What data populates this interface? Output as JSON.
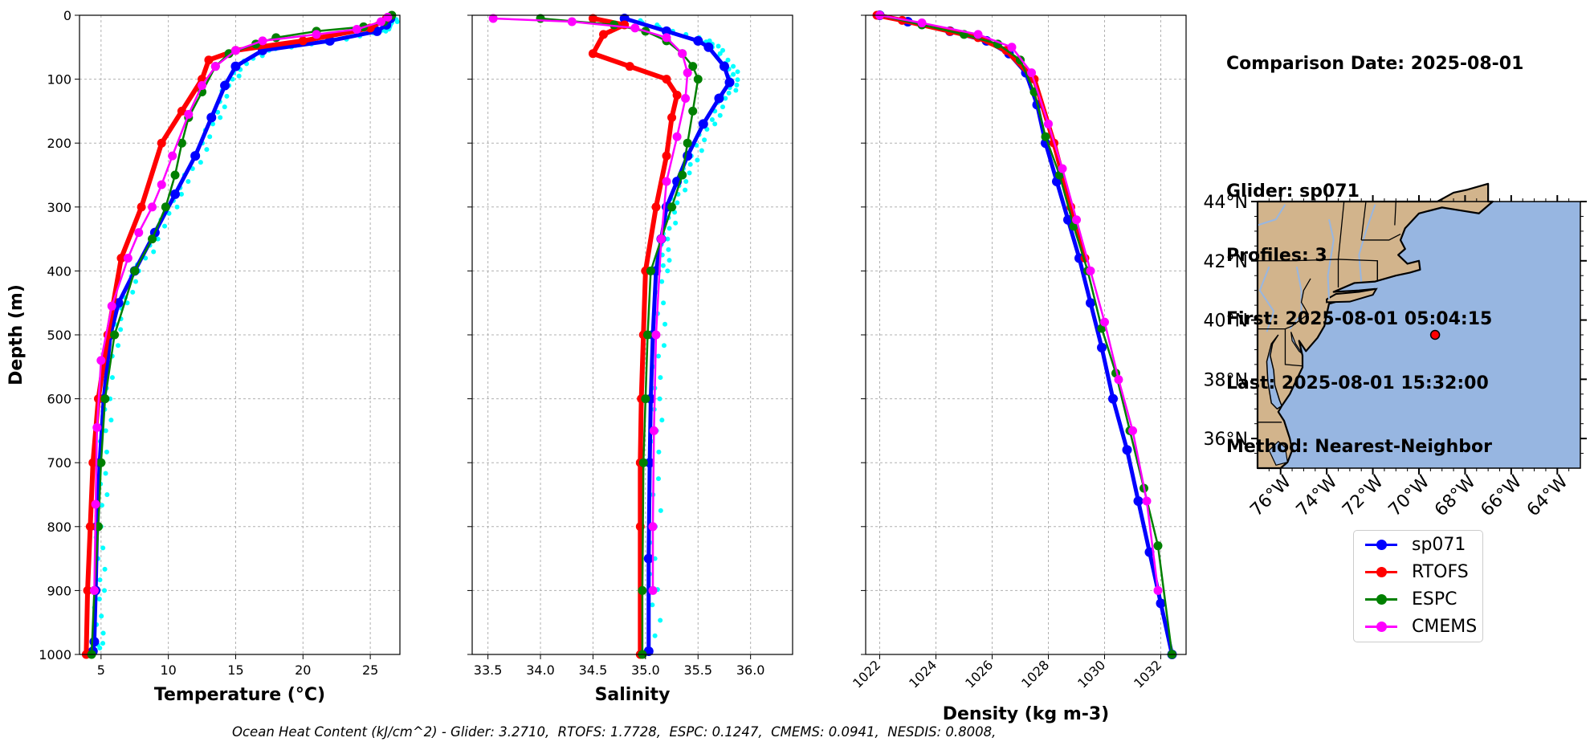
{
  "info": {
    "lines": [
      "Comparison Date: 2025-08-01",
      "",
      "Glider: sp071",
      "Profiles: 3",
      "First: 2025-08-01 05:04:15",
      "Last: 2025-08-01 15:32:00",
      "Method: Nearest-Neighbor"
    ]
  },
  "footer": "Ocean Heat Content (kJ/cm^2) - Glider: 3.2710,  RTOFS: 1.7728,  ESPC: 0.1247,  CMEMS: 0.0941,  NESDIS: 0.8008,",
  "colors": {
    "sp071": "#0000ff",
    "sp071_scatter": "#00ffff",
    "RTOFS": "#ff0000",
    "ESPC": "#008000",
    "CMEMS": "#ff00ff",
    "land": "#d2b48c",
    "ocean": "#97b6e1"
  },
  "legend": [
    {
      "name": "sp071",
      "color": "#0000ff"
    },
    {
      "name": "RTOFS",
      "color": "#ff0000"
    },
    {
      "name": "ESPC",
      "color": "#008000"
    },
    {
      "name": "CMEMS",
      "color": "#ff00ff"
    }
  ],
  "chart_data": [
    {
      "type": "line",
      "xlabel": "Temperature (°C)",
      "ylabel": "Depth (m)",
      "xlim": [
        3.4,
        27.2
      ],
      "ylim": [
        1000,
        0
      ],
      "xticks": [
        5,
        10,
        15,
        20,
        25
      ],
      "yticks": [
        0,
        100,
        200,
        300,
        400,
        500,
        600,
        700,
        800,
        900,
        1000
      ],
      "grid": true,
      "series": [
        {
          "name": "sp071",
          "x": [
            26.5,
            26.2,
            25.5,
            22.0,
            17.0,
            15.0,
            14.2,
            13.2,
            12.0,
            10.5,
            9.0,
            7.5,
            6.3,
            5.7,
            5.2,
            4.9,
            4.7,
            4.6,
            4.5,
            4.4
          ],
          "y": [
            5,
            15,
            25,
            40,
            55,
            80,
            110,
            160,
            220,
            280,
            340,
            400,
            450,
            500,
            600,
            700,
            800,
            900,
            980,
            995
          ]
        },
        {
          "name": "RTOFS",
          "x": [
            26.2,
            25.0,
            20.0,
            15.0,
            13.0,
            12.5,
            11.0,
            9.5,
            8.0,
            6.5,
            5.5,
            4.8,
            4.4,
            4.2,
            4.0,
            3.9
          ],
          "y": [
            5,
            20,
            40,
            55,
            70,
            100,
            150,
            200,
            300,
            380,
            500,
            600,
            700,
            800,
            900,
            1000
          ]
        },
        {
          "name": "ESPC",
          "x": [
            26.6,
            26.0,
            24.5,
            21.0,
            18.0,
            16.5,
            14.5,
            13.5,
            12.5,
            11.5,
            11.0,
            10.5,
            9.8,
            8.8,
            7.5,
            6.0,
            5.3,
            5.0,
            4.8,
            4.5,
            4.3
          ],
          "y": [
            0,
            10,
            18,
            25,
            35,
            45,
            60,
            80,
            120,
            160,
            200,
            250,
            300,
            350,
            400,
            500,
            600,
            700,
            800,
            900,
            1000
          ]
        },
        {
          "name": "CMEMS",
          "x": [
            26.3,
            25.8,
            24.0,
            21.0,
            17.0,
            15.0,
            13.5,
            12.5,
            11.5,
            10.3,
            9.5,
            8.8,
            7.8,
            7.0,
            5.8,
            5.0,
            4.7,
            4.6,
            4.5
          ],
          "y": [
            3,
            10,
            22,
            30,
            40,
            55,
            80,
            110,
            155,
            220,
            265,
            300,
            340,
            380,
            455,
            540,
            645,
            765,
            900
          ]
        }
      ]
    },
    {
      "type": "line",
      "xlabel": "Salinity",
      "ylabel": "",
      "xlim": [
        33.35,
        36.4
      ],
      "ylim": [
        1000,
        0
      ],
      "xticks": [
        33.5,
        34.0,
        34.5,
        35.0,
        35.5,
        36.0
      ],
      "yticks": [
        0,
        100,
        200,
        300,
        400,
        500,
        600,
        700,
        800,
        900,
        1000
      ],
      "grid": true,
      "series": [
        {
          "name": "sp071",
          "x": [
            34.8,
            35.2,
            35.5,
            35.6,
            35.75,
            35.8,
            35.7,
            35.55,
            35.4,
            35.3,
            35.2,
            35.15,
            35.1,
            35.07,
            35.05,
            35.04,
            35.03,
            35.03
          ],
          "y": [
            5,
            25,
            40,
            50,
            80,
            105,
            130,
            170,
            220,
            260,
            300,
            350,
            400,
            500,
            600,
            700,
            850,
            995
          ]
        },
        {
          "name": "RTOFS",
          "x": [
            34.5,
            34.8,
            34.6,
            34.5,
            34.85,
            35.2,
            35.3,
            35.25,
            35.2,
            35.1,
            35.0,
            34.98,
            34.96,
            34.95,
            34.95,
            34.95
          ],
          "y": [
            5,
            15,
            30,
            60,
            80,
            100,
            125,
            160,
            220,
            300,
            400,
            500,
            600,
            700,
            800,
            1000
          ]
        },
        {
          "name": "ESPC",
          "x": [
            34.0,
            34.7,
            35.0,
            35.2,
            35.35,
            35.45,
            35.5,
            35.45,
            35.4,
            35.35,
            35.25,
            35.15,
            35.05,
            35.02,
            35.0,
            34.98,
            34.97,
            34.97
          ],
          "y": [
            5,
            15,
            25,
            40,
            60,
            80,
            100,
            150,
            200,
            250,
            300,
            350,
            400,
            500,
            600,
            700,
            900,
            1000
          ]
        },
        {
          "name": "CMEMS",
          "x": [
            33.55,
            34.3,
            34.9,
            35.2,
            35.35,
            35.4,
            35.38,
            35.3,
            35.2,
            35.15,
            35.1,
            35.08,
            35.07,
            35.07
          ],
          "y": [
            5,
            10,
            20,
            35,
            60,
            90,
            130,
            190,
            260,
            350,
            500,
            650,
            800,
            900
          ]
        }
      ]
    },
    {
      "type": "line",
      "xlabel": "Density (kg m-3)",
      "ylabel": "",
      "xlim": [
        1021.5,
        1032.9
      ],
      "ylim": [
        1000,
        0
      ],
      "xticks": [
        1022,
        1024,
        1026,
        1028,
        1030,
        1032
      ],
      "yticks": [
        0,
        100,
        200,
        300,
        400,
        500,
        600,
        700,
        800,
        900,
        1000
      ],
      "grid": true,
      "series": [
        {
          "name": "sp071",
          "x": [
            1022.0,
            1023.0,
            1024.5,
            1025.8,
            1026.6,
            1027.2,
            1027.6,
            1027.9,
            1028.3,
            1028.7,
            1029.1,
            1029.5,
            1029.9,
            1030.3,
            1030.8,
            1031.2,
            1031.6,
            1032.0,
            1032.4
          ],
          "y": [
            0,
            10,
            25,
            40,
            60,
            90,
            140,
            200,
            260,
            320,
            380,
            450,
            520,
            600,
            680,
            760,
            840,
            920,
            1000
          ]
        },
        {
          "name": "RTOFS",
          "x": [
            1021.9,
            1022.8,
            1024.5,
            1025.5,
            1026.5,
            1027.5,
            1028.2,
            1028.8,
            1029.3
          ],
          "y": [
            0,
            8,
            25,
            35,
            55,
            100,
            200,
            300,
            380
          ]
        },
        {
          "name": "ESPC",
          "x": [
            1022.0,
            1023.5,
            1025.0,
            1026.2,
            1027.0,
            1027.5,
            1027.9,
            1028.4,
            1028.9,
            1029.4,
            1029.9,
            1030.4,
            1030.9,
            1031.4,
            1031.9,
            1032.4
          ],
          "y": [
            0,
            15,
            30,
            45,
            70,
            120,
            190,
            250,
            330,
            400,
            490,
            560,
            650,
            740,
            830,
            1000
          ]
        },
        {
          "name": "CMEMS",
          "x": [
            1022.0,
            1023.5,
            1025.5,
            1026.7,
            1027.4,
            1028.0,
            1028.5,
            1029.0,
            1029.5,
            1030.0,
            1030.5,
            1031.0,
            1031.5,
            1031.9
          ],
          "y": [
            0,
            12,
            30,
            50,
            90,
            170,
            240,
            320,
            400,
            480,
            570,
            650,
            760,
            900
          ]
        }
      ]
    }
  ],
  "map": {
    "lon_range": [
      -77.0,
      -63.0
    ],
    "lat_range": [
      35.0,
      44.0
    ],
    "xticks": [
      "76°W",
      "74°W",
      "72°W",
      "70°W",
      "68°W",
      "66°W",
      "64°W"
    ],
    "xtick_values": [
      -76,
      -74,
      -72,
      -70,
      -68,
      -66,
      -64
    ],
    "yticks": [
      "36°N",
      "38°N",
      "40°N",
      "42°N",
      "44°N"
    ],
    "ytick_values": [
      36,
      38,
      40,
      42,
      44
    ],
    "glider_position": {
      "lon": -69.3,
      "lat": 39.5
    }
  }
}
